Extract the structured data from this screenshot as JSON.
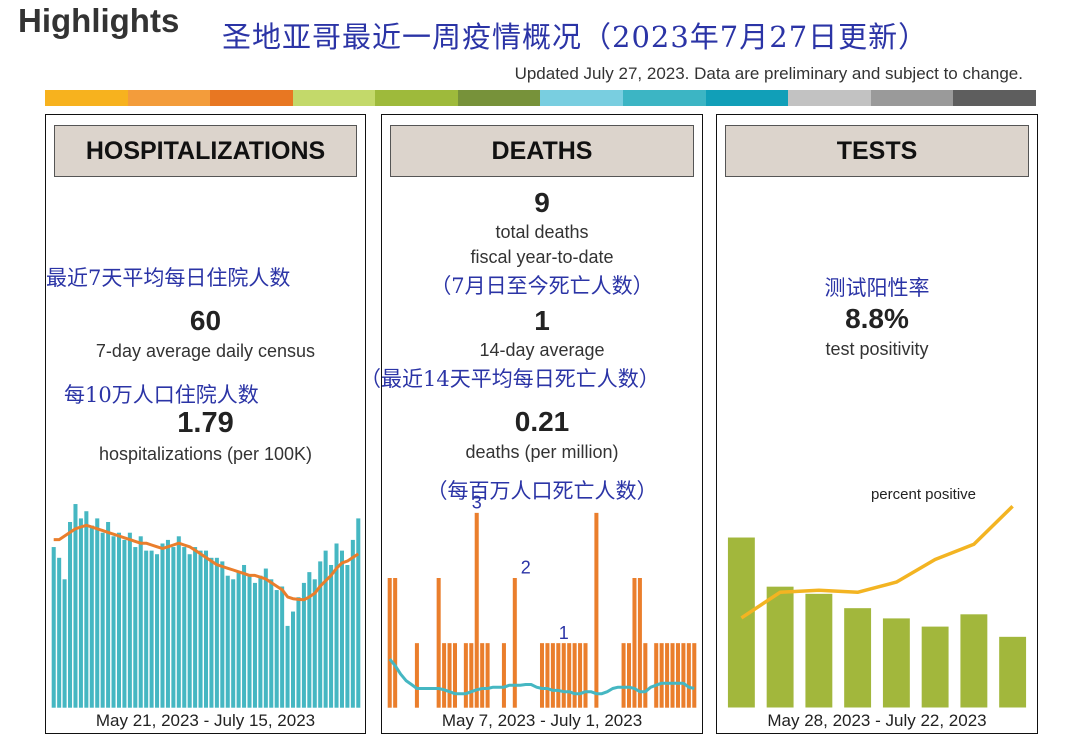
{
  "header": {
    "title": "Highlights",
    "title_cn": "圣地亚哥最近一周疫情概况（2023年7月27日更新）",
    "updated": "Updated July 27, 2023. Data are preliminary and subject to change."
  },
  "colors": {
    "color_bar": [
      "#F7B21E",
      "#F39C3B",
      "#E87722",
      "#C3D96A",
      "#9EBA3B",
      "#77923A",
      "#79CEE0",
      "#3CB5C4",
      "#119FB8",
      "#C2C2C2",
      "#9A9A9A",
      "#5E5E5E"
    ],
    "teal": "#45B7C2",
    "orange": "#EA7E2C",
    "olive": "#A2B73C",
    "gold": "#F3B422",
    "cn_text": "#2B34A6"
  },
  "hospitalizations": {
    "heading": "HOSPITALIZATIONS",
    "cn_avg": "最近7天平均每日住院人数",
    "avg_value": "60",
    "avg_label": "7-day average daily census",
    "cn_rate": "每10万人口住院人数",
    "rate_value": "1.79",
    "rate_label": "hospitalizations (per 100K)",
    "footer": "May 21, 2023 - July 15, 2023"
  },
  "deaths": {
    "heading": "DEATHS",
    "total_value": "9",
    "total_label": "total deaths",
    "fiscal_label": "fiscal year-to-date",
    "cn_total": "（7月日至今死亡人数）",
    "avg_value": "1",
    "avg_label": "14-day average",
    "cn_avg": "（最近14天平均每日死亡人数）",
    "rate_value": "0.21",
    "rate_label": "deaths (per million)",
    "cn_rate": "（每百万人口死亡人数）",
    "footer": "May 7, 2023 - July 1, 2023"
  },
  "tests": {
    "heading": "TESTS",
    "cn_rate": "测试阳性率",
    "rate_value": "8.8%",
    "rate_label": "test positivity",
    "footer": "May 28, 2023 - July 22, 2023"
  },
  "chart_data": [
    {
      "type": "bar",
      "series": [
        {
          "kind": "bar",
          "values": [
            45,
            42,
            36,
            52,
            57,
            53,
            55,
            51,
            53,
            49,
            52,
            48,
            49,
            47,
            49,
            45,
            48,
            44,
            44,
            43,
            46,
            47,
            45,
            48,
            45,
            43,
            45,
            44,
            44,
            42,
            42,
            41,
            37,
            36,
            38,
            40,
            37,
            35,
            37,
            39,
            36,
            33,
            34,
            23,
            27,
            31,
            35,
            38,
            36,
            41,
            44,
            40,
            46,
            44,
            40,
            47,
            53
          ]
        },
        {
          "kind": "line",
          "values": [
            47,
            47,
            48,
            49,
            50,
            50.5,
            51,
            50.5,
            50,
            49.5,
            49,
            48.5,
            48,
            47.5,
            47,
            46.5,
            46,
            46,
            45.5,
            45,
            44.5,
            45,
            45.5,
            46,
            45.5,
            45,
            44,
            43,
            42,
            41,
            40,
            39.5,
            39,
            38.5,
            38,
            37.5,
            37,
            37,
            36.5,
            36,
            35,
            34,
            33,
            31,
            30.5,
            30.3,
            30.2,
            31,
            32,
            34,
            35.5,
            37,
            39,
            40.5,
            41,
            42,
            43
          ]
        }
      ],
      "ylim": [
        0,
        60
      ]
    },
    {
      "type": "bar",
      "series": [
        {
          "kind": "bar",
          "values": [
            2,
            2,
            0,
            0,
            0,
            1,
            0,
            0,
            0,
            2,
            1,
            1,
            1,
            0,
            1,
            1,
            3,
            1,
            1,
            0,
            0,
            1,
            0,
            2,
            0,
            0,
            0,
            0,
            1,
            1,
            1,
            1,
            1,
            1,
            1,
            1,
            1,
            0,
            3,
            0,
            0,
            0,
            0,
            1,
            1,
            2,
            2,
            1,
            0,
            1,
            1,
            1,
            1,
            1,
            1,
            1,
            1
          ]
        },
        {
          "kind": "line",
          "values": [
            0.75,
            0.65,
            0.52,
            0.42,
            0.36,
            0.3,
            0.3,
            0.3,
            0.3,
            0.3,
            0.28,
            0.25,
            0.22,
            0.22,
            0.22,
            0.25,
            0.28,
            0.3,
            0.3,
            0.32,
            0.32,
            0.32,
            0.35,
            0.35,
            0.35,
            0.36,
            0.36,
            0.32,
            0.3,
            0.3,
            0.27,
            0.27,
            0.25,
            0.25,
            0.22,
            0.22,
            0.25,
            0.25,
            0.22,
            0.22,
            0.25,
            0.3,
            0.32,
            0.32,
            0.32,
            0.3,
            0.25,
            0.25,
            0.32,
            0.35,
            0.38,
            0.38,
            0.38,
            0.38,
            0.38,
            0.32,
            0.3
          ]
        }
      ],
      "annotations": [
        {
          "label": "3"
        },
        {
          "label": "2"
        },
        {
          "label": "1"
        }
      ],
      "ylim": [
        0,
        3.3
      ]
    },
    {
      "type": "bar",
      "series": [
        {
          "kind": "bar",
          "values": [
            16.7,
            11.9,
            11.2,
            9.8,
            8.8,
            8.0,
            9.2,
            7.0
          ]
        },
        {
          "kind": "line",
          "name": "percent positive",
          "values": [
            8.8,
            11.3,
            11.5,
            11.3,
            12.3,
            14.5,
            16.0,
            19.7
          ]
        }
      ],
      "ylim": [
        0,
        21
      ]
    }
  ]
}
